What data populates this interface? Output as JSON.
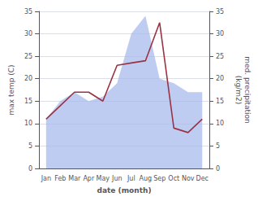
{
  "chart_data": {
    "type": "line",
    "categories": [
      "Jan",
      "Feb",
      "Mar",
      "Apr",
      "May",
      "Jun",
      "Jul",
      "Aug",
      "Sep",
      "Oct",
      "Nov",
      "Dec"
    ],
    "xlabel": "date (month)",
    "ylabel": "max temp (C)",
    "y2label": "med. precipitation\n(kg/m2)",
    "series": [
      {
        "type": "area",
        "axis": "y2",
        "color": "#aabbee",
        "values": [
          11,
          15,
          17,
          15,
          16,
          19,
          30,
          34,
          20,
          19,
          17,
          17
        ]
      },
      {
        "type": "line",
        "color": "#993344",
        "values": [
          11,
          14,
          17,
          17,
          15,
          23,
          23.5,
          24,
          32.5,
          9,
          8,
          11
        ]
      }
    ],
    "ylim": [
      0,
      35
    ],
    "yticks": [
      0,
      5,
      10,
      15,
      20,
      25,
      30,
      35
    ],
    "y2lim": [
      0,
      35
    ],
    "y2ticks": [
      0,
      5,
      10,
      15,
      20,
      25,
      30,
      35
    ],
    "grid": true
  }
}
